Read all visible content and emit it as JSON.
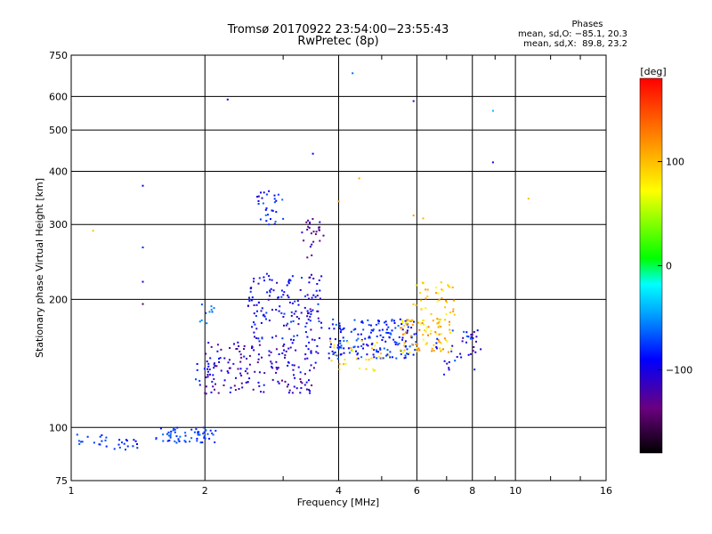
{
  "header": {
    "title_line1": "Tromsø 20170922 23:54:00−23:55:43",
    "title_line2": "RwPretec (8p)"
  },
  "stats": {
    "heading": "Phases",
    "line_o": "mean, sd,O: −85.1, 20.3",
    "line_x": "mean, sd,X:  89.8, 23.2"
  },
  "colorbar": {
    "unit": "[deg]",
    "tick_labels": [
      "100",
      "0",
      "−100"
    ],
    "tick_values": [
      100,
      0,
      -100
    ],
    "range": [
      -180,
      180
    ]
  },
  "chart_data": {
    "type": "scatter",
    "xlabel": "Frequency [MHz]",
    "ylabel": "Stationary phase Virtual Height [km]",
    "xscale": "log",
    "yscale": "log",
    "xlim": [
      1,
      16
    ],
    "ylim": [
      75,
      750
    ],
    "xticks": [
      1,
      2,
      4,
      6,
      8,
      10,
      16
    ],
    "xtick_labels": [
      "1",
      "2",
      "4",
      "6",
      "8",
      "10",
      "16"
    ],
    "yticks": [
      75,
      100,
      200,
      300,
      400,
      500,
      600,
      750
    ],
    "ytick_labels": [
      "75",
      "100",
      "200",
      "300",
      "400",
      "500",
      "600",
      "750"
    ],
    "grid": true,
    "color_by": "phase (deg)",
    "clusters": [
      {
        "f": [
          1.0,
          1.2
        ],
        "h": [
          90,
          97
        ],
        "phase": [
          -85,
          -65
        ],
        "n": 14
      },
      {
        "f": [
          1.2,
          1.42
        ],
        "h": [
          88,
          96
        ],
        "phase": [
          -90,
          -70
        ],
        "n": 16
      },
      {
        "f": [
          1.55,
          2.12
        ],
        "h": [
          92,
          100
        ],
        "phase": [
          -90,
          -60
        ],
        "n": 60
      },
      {
        "f": [
          1.9,
          2.1
        ],
        "h": [
          125,
          145
        ],
        "phase": [
          -110,
          -60
        ],
        "n": 14
      },
      {
        "f": [
          1.95,
          2.1
        ],
        "h": [
          175,
          200
        ],
        "phase": [
          -80,
          -50
        ],
        "n": 10
      },
      {
        "f": [
          2.0,
          3.6
        ],
        "h": [
          120,
          160
        ],
        "phase": [
          -140,
          -80
        ],
        "n": 170
      },
      {
        "f": [
          2.5,
          3.7
        ],
        "h": [
          160,
          230
        ],
        "phase": [
          -120,
          -70
        ],
        "n": 150
      },
      {
        "f": [
          2.6,
          3.0
        ],
        "h": [
          300,
          360
        ],
        "phase": [
          -110,
          -60
        ],
        "n": 30
      },
      {
        "f": [
          3.3,
          3.7
        ],
        "h": [
          250,
          310
        ],
        "phase": [
          -150,
          -110
        ],
        "n": 26
      },
      {
        "f": [
          3.8,
          6.0
        ],
        "h": [
          145,
          180
        ],
        "phase": [
          -100,
          -60
        ],
        "n": 180
      },
      {
        "f": [
          3.8,
          5.2
        ],
        "h": [
          135,
          160
        ],
        "phase": [
          60,
          110
        ],
        "n": 30
      },
      {
        "f": [
          5.5,
          7.2
        ],
        "h": [
          150,
          180
        ],
        "phase": [
          60,
          130
        ],
        "n": 90
      },
      {
        "f": [
          5.8,
          7.3
        ],
        "h": [
          180,
          220
        ],
        "phase": [
          70,
          120
        ],
        "n": 40
      },
      {
        "f": [
          6.5,
          8.2
        ],
        "h": [
          130,
          170
        ],
        "phase": [
          -120,
          -60
        ],
        "n": 30
      },
      {
        "f": [
          7.5,
          8.5
        ],
        "h": [
          150,
          170
        ],
        "phase": [
          -130,
          -90
        ],
        "n": 10
      }
    ],
    "points": [
      {
        "f": 1.12,
        "h": 290,
        "phase": 100
      },
      {
        "f": 1.45,
        "h": 370,
        "phase": -90
      },
      {
        "f": 1.45,
        "h": 265,
        "phase": -80
      },
      {
        "f": 1.45,
        "h": 220,
        "phase": -100
      },
      {
        "f": 1.45,
        "h": 195,
        "phase": -150
      },
      {
        "f": 2.25,
        "h": 590,
        "phase": -100
      },
      {
        "f": 3.5,
        "h": 440,
        "phase": -90
      },
      {
        "f": 4.3,
        "h": 680,
        "phase": -60
      },
      {
        "f": 5.9,
        "h": 585,
        "phase": -110
      },
      {
        "f": 8.9,
        "h": 555,
        "phase": -40
      },
      {
        "f": 8.9,
        "h": 420,
        "phase": -100
      },
      {
        "f": 10.7,
        "h": 345,
        "phase": 100
      },
      {
        "f": 4.45,
        "h": 385,
        "phase": 110
      },
      {
        "f": 4.0,
        "h": 340,
        "phase": 120
      },
      {
        "f": 5.9,
        "h": 315,
        "phase": 115
      },
      {
        "f": 6.2,
        "h": 310,
        "phase": 105
      }
    ]
  }
}
